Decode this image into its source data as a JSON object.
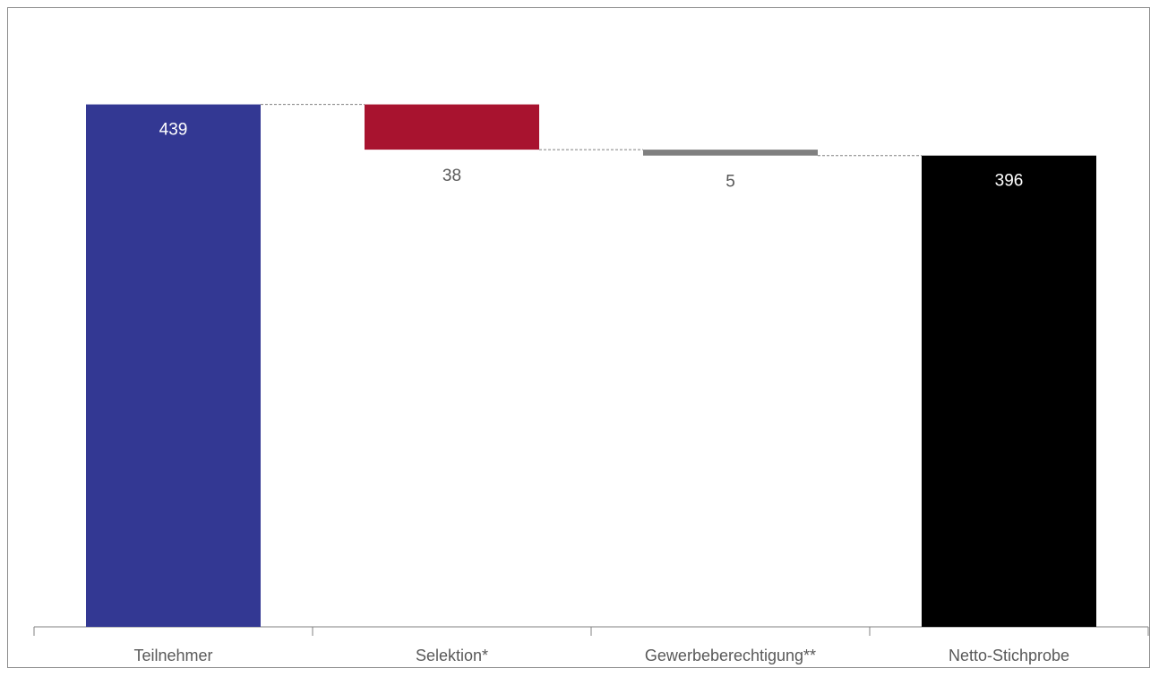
{
  "chart_data": {
    "type": "bar",
    "subtype": "waterfall",
    "categories": [
      "Teilnehmer",
      "Selektion*",
      "Gewerbeberechtigung**",
      "Netto-Stichprobe"
    ],
    "values": [
      439,
      -38,
      -5,
      396
    ],
    "value_labels": [
      "439",
      "38",
      "5",
      "396"
    ],
    "kinds": [
      "total",
      "decrease",
      "decrease",
      "total"
    ],
    "colors": [
      "#333893",
      "#A8132F",
      "#808080",
      "#000000"
    ],
    "label_colors": [
      "#ffffff",
      "#595959",
      "#595959",
      "#ffffff"
    ],
    "connector_color": "#808080",
    "axis_color": "#808080",
    "ylim": [
      0,
      500
    ],
    "grid": false,
    "legend": "none",
    "title": "",
    "xlabel": "",
    "ylabel": ""
  }
}
